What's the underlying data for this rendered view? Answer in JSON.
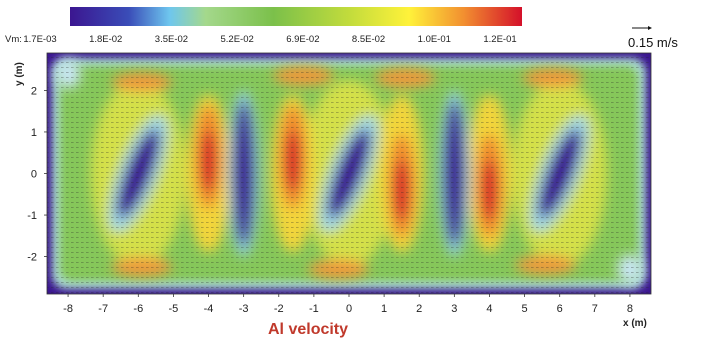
{
  "chart_data": {
    "type": "heatmap",
    "title": "Al velocity",
    "xlabel": "x (m)",
    "ylabel": "y (m)",
    "xlim": [
      -8.6,
      8.6
    ],
    "ylim": [
      -2.9,
      2.9
    ],
    "x_ticks": [
      "-8",
      "-7",
      "-6",
      "-5",
      "-4",
      "-3",
      "-2",
      "-1",
      "0",
      "1",
      "2",
      "3",
      "4",
      "5",
      "6",
      "7",
      "8"
    ],
    "y_ticks": [
      "2",
      "1",
      "0",
      "-1",
      "-2"
    ],
    "colorbar": {
      "variable": "Vm:",
      "tick_labels": [
        "1.7E-03",
        "1.8E-02",
        "3.5E-02",
        "5.2E-02",
        "6.9E-02",
        "8.5E-02",
        "1.0E-01",
        "1.2E-01"
      ],
      "colors": [
        "#3b1690",
        "#6ec6ee",
        "#a4d88c",
        "#7bc04a",
        "#c3dc3c",
        "#fff23a",
        "#f29030",
        "#d4102a"
      ]
    },
    "reference_vector": {
      "label": "0.15 m/s"
    },
    "minima_centers_x": [
      -6,
      -3,
      0,
      3,
      6
    ],
    "maxima_columns_x": [
      -4,
      -1.6,
      1.5,
      4
    ],
    "grid": false
  }
}
